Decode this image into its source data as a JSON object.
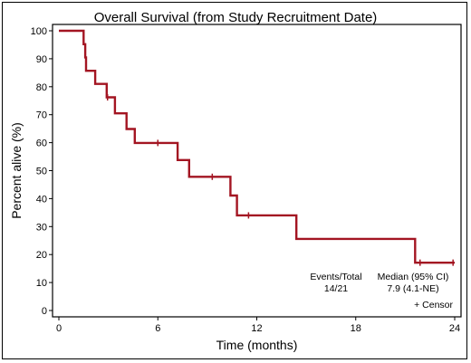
{
  "chart_data": {
    "type": "line",
    "title": "Overall Survival (from Study Recruitment Date)",
    "xlabel": "Time (months)",
    "ylabel": "Percent alive (%)",
    "xlim": [
      0,
      24
    ],
    "ylim": [
      0,
      100
    ],
    "x_ticks": [
      0,
      6,
      12,
      18,
      24
    ],
    "y_ticks": [
      0,
      10,
      20,
      30,
      40,
      50,
      60,
      70,
      80,
      90,
      100
    ],
    "grid": false,
    "line_color": "#a31522",
    "series": [
      {
        "step_points": [
          [
            0,
            100
          ],
          [
            1.5,
            100
          ],
          [
            1.5,
            95.2
          ],
          [
            1.6,
            95.2
          ],
          [
            1.6,
            90.5
          ],
          [
            1.65,
            90.5
          ],
          [
            1.65,
            85.7
          ],
          [
            2.2,
            85.7
          ],
          [
            2.2,
            81.0
          ],
          [
            2.9,
            81.0
          ],
          [
            2.9,
            76.2
          ],
          [
            3.4,
            76.2
          ],
          [
            3.4,
            70.5
          ],
          [
            4.1,
            70.5
          ],
          [
            4.1,
            64.9
          ],
          [
            4.6,
            64.9
          ],
          [
            4.6,
            59.9
          ],
          [
            7.2,
            59.9
          ],
          [
            7.2,
            53.8
          ],
          [
            7.9,
            53.8
          ],
          [
            7.9,
            47.8
          ],
          [
            10.4,
            47.8
          ],
          [
            10.4,
            41.1
          ],
          [
            10.8,
            41.1
          ],
          [
            10.8,
            34.0
          ],
          [
            14.4,
            34.0
          ],
          [
            14.4,
            25.6
          ],
          [
            21.6,
            25.6
          ],
          [
            21.6,
            17.1
          ],
          [
            24,
            17.1
          ]
        ],
        "censor_points": [
          [
            2.95,
            76.2
          ],
          [
            6.0,
            59.9
          ],
          [
            9.3,
            47.8
          ],
          [
            11.5,
            34.0
          ],
          [
            21.9,
            17.1
          ],
          [
            23.9,
            17.1
          ]
        ]
      }
    ],
    "annotations": {
      "events_header": "Events/Total",
      "events_value": "14/21",
      "median_header": "Median (95% CI)",
      "median_value": "7.9 (4.1-NE)",
      "censor_legend": "+ Censor"
    }
  }
}
